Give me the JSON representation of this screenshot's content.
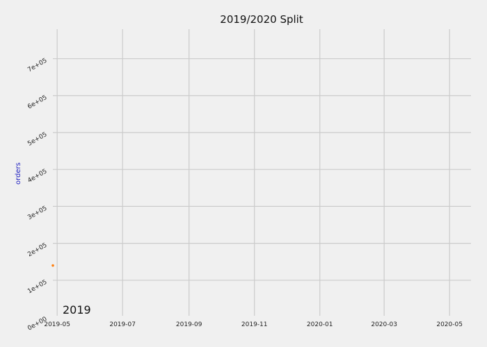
{
  "chart_data": {
    "type": "line",
    "title": "2019/2020 Split",
    "xlabel": "",
    "ylabel": "orders",
    "x_ticks": [
      "2019-05",
      "2019-07",
      "2019-09",
      "2019-11",
      "2020-01",
      "2020-03",
      "2020-05"
    ],
    "y_ticks": [
      "0e+00",
      "1e+05",
      "2e+05",
      "3e+05",
      "4e+05",
      "5e+05",
      "6e+05",
      "7e+05"
    ],
    "ylim": [
      0,
      780000
    ],
    "xlim": [
      "2019-04-27",
      "2020-05-21"
    ],
    "grid": true,
    "annotation": "2019",
    "series": [
      {
        "color": "#ff7f0e",
        "points": [
          {
            "x": "2019-04-27",
            "y": 140000
          }
        ]
      }
    ]
  },
  "colors": {
    "background": "#f0f0f0",
    "grid": "#cbcbcb",
    "ylabel": "#2020c0",
    "series": "#ff7f0e"
  }
}
